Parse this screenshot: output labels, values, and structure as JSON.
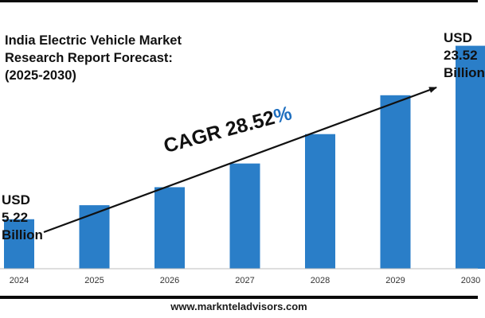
{
  "title_lines": [
    "India Electric Vehicle Market",
    "Research Report Forecast:",
    "(2025-2030)"
  ],
  "cagr": {
    "label": "CAGR 28.52",
    "percent_sign": "%"
  },
  "start_callout": [
    "USD",
    "5.22",
    "Billion"
  ],
  "end_callout": [
    "USD",
    "23.52",
    "Billion"
  ],
  "footer": "www.marknteladvisors.com",
  "colors": {
    "bar": "#2a7ec8",
    "arrow": "#111111",
    "accent": "#1f6fbf"
  },
  "chart_data": {
    "type": "bar",
    "title": "India Electric Vehicle Market Research Report Forecast: (2025-2030)",
    "categories": [
      "2024",
      "2025",
      "2026",
      "2027",
      "2028",
      "2029",
      "2030"
    ],
    "values": [
      5.22,
      6.7,
      8.6,
      11.1,
      14.2,
      18.3,
      23.52
    ],
    "unit": "USD Billion",
    "ylim": [
      0,
      26
    ],
    "grid": false,
    "legend": "none"
  }
}
